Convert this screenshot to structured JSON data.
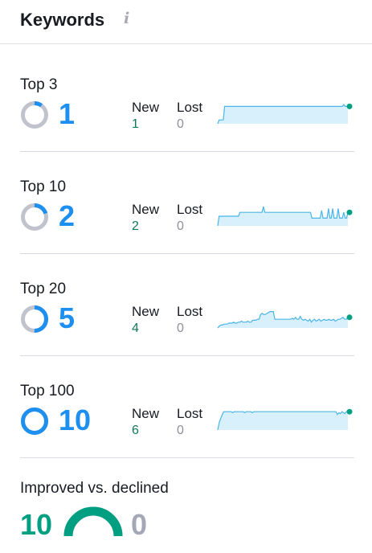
{
  "widget": {
    "title": "Keywords",
    "info_icon": "i"
  },
  "colors": {
    "count_blue": "#1d8ff0",
    "new_green": "#0e7a52",
    "spark_line": "#4ab5e8",
    "spark_fill": "#d8f0fc",
    "dot_green": "#009f81",
    "donut_gray": "#c1c3cc",
    "improved_green": "#009f81",
    "declined_gray": "#a4a7b5"
  },
  "sections": [
    {
      "label": "Top 3",
      "count": "1",
      "share": 0.1,
      "new_label": "New",
      "new_value": "1",
      "lost_label": "Lost",
      "lost_value": "0",
      "trend": [
        0,
        0.2,
        0.2,
        0.2,
        0.2,
        0.9,
        0.9,
        0.9,
        0.9,
        0.9,
        0.9,
        0.9,
        0.9,
        0.9,
        0.9,
        0.9,
        0.9,
        0.9,
        0.9,
        0.9,
        0.9,
        0.9,
        0.9,
        0.9,
        0.9,
        0.9,
        0.9,
        0.9,
        0.9,
        0.9,
        0.9,
        0.9,
        0.9,
        0.9,
        0.9,
        0.9,
        0.9,
        0.9,
        0.9,
        0.9,
        0.9,
        0.9,
        0.9,
        0.9,
        0.9,
        0.9,
        0.9,
        0.9,
        0.9,
        0.9,
        0.9,
        0.9,
        0.9,
        0.9,
        0.9,
        0.9,
        0.9,
        0.9,
        0.9,
        0.9,
        0.9,
        0.9,
        0.9,
        0.9,
        0.9,
        0.9,
        0.9,
        0.9,
        0.9,
        0.9,
        0.9,
        0.9,
        0.9,
        0.9,
        0.9,
        0.9,
        0.9,
        0.9,
        0.9,
        0.9,
        0.9,
        0.9,
        0.9,
        0.9,
        0.9,
        0.9,
        0.9,
        0.9,
        0.9,
        0.9,
        0.9,
        1,
        0.9,
        0.9,
        0.9
      ]
    },
    {
      "label": "Top 10",
      "count": "2",
      "share": 0.2,
      "new_label": "New",
      "new_value": "2",
      "lost_label": "Lost",
      "lost_value": "0",
      "trend": [
        0,
        0.5,
        0.5,
        0.5,
        0.5,
        0.5,
        0.5,
        0.5,
        0.5,
        0.5,
        0.5,
        0.5,
        0.5,
        0.5,
        0.5,
        0.5,
        0.7,
        0.7,
        0.7,
        0.7,
        0.7,
        0.7,
        0.7,
        0.7,
        0.7,
        0.7,
        0.7,
        0.7,
        0.7,
        0.7,
        0.7,
        0.7,
        0.7,
        1,
        0.7,
        0.7,
        0.7,
        0.7,
        0.7,
        0.7,
        0.7,
        0.7,
        0.7,
        0.7,
        0.7,
        0.7,
        0.7,
        0.7,
        0.7,
        0.7,
        0.7,
        0.7,
        0.7,
        0.7,
        0.7,
        0.7,
        0.7,
        0.7,
        0.7,
        0.7,
        0.7,
        0.7,
        0.7,
        0.7,
        0.7,
        0.7,
        0.7,
        0.7,
        0.4,
        0.4,
        0.4,
        0.4,
        0.4,
        0.4,
        0.4,
        0.8,
        0.4,
        0.4,
        0.4,
        0.4,
        0.9,
        0.4,
        0.4,
        0.9,
        0.4,
        0.4,
        0.4,
        0.9,
        0.4,
        0.4,
        0.4,
        0.7,
        0.4,
        0.4,
        0.7
      ]
    },
    {
      "label": "Top 20",
      "count": "5",
      "share": 0.5,
      "new_label": "New",
      "new_value": "4",
      "lost_label": "Lost",
      "lost_value": "0",
      "trend": [
        0,
        0.1,
        0.15,
        0.15,
        0.2,
        0.2,
        0.2,
        0.25,
        0.25,
        0.25,
        0.3,
        0.25,
        0.25,
        0.3,
        0.3,
        0.35,
        0.3,
        0.3,
        0.3,
        0.35,
        0.3,
        0.3,
        0.4,
        0.4,
        0.4,
        0.45,
        0.45,
        0.7,
        0.75,
        0.7,
        0.7,
        0.75,
        0.8,
        0.85,
        0.85,
        0.85,
        0.45,
        0.45,
        0.45,
        0.45,
        0.45,
        0.45,
        0.45,
        0.45,
        0.45,
        0.45,
        0.45,
        0.5,
        0.45,
        0.55,
        0.45,
        0.45,
        0.6,
        0.45,
        0.4,
        0.45,
        0.4,
        0.35,
        0.45,
        0.3,
        0.4,
        0.45,
        0.35,
        0.4,
        0.45,
        0.35,
        0.4,
        0.45,
        0.4,
        0.4,
        0.45,
        0.4,
        0.4,
        0.45,
        0.35,
        0.4,
        0.45,
        0.45,
        0.5,
        0.55,
        0.45,
        0.45,
        0.55
      ]
    },
    {
      "label": "Top 100",
      "count": "10",
      "share": 1,
      "new_label": "New",
      "new_value": "6",
      "lost_label": "Lost",
      "lost_value": "0",
      "trend": [
        0,
        0.4,
        0.6,
        0.8,
        0.95,
        0.95,
        0.95,
        0.95,
        0.95,
        0.95,
        0.9,
        0.95,
        0.95,
        0.95,
        0.95,
        0.95,
        0.95,
        0.95,
        0.9,
        0.95,
        0.95,
        0.95,
        0.95,
        0.9,
        0.95,
        0.95,
        0.95,
        0.95,
        0.95,
        0.95,
        0.95,
        0.95,
        0.95,
        0.95,
        0.95,
        0.95,
        0.95,
        0.95,
        0.95,
        0.95,
        0.95,
        0.95,
        0.95,
        0.95,
        0.95,
        0.95,
        0.95,
        0.95,
        0.95,
        0.95,
        0.95,
        0.95,
        0.95,
        0.95,
        0.95,
        0.95,
        0.95,
        0.95,
        0.95,
        0.95,
        0.95,
        0.95,
        0.95,
        0.95,
        0.95,
        0.95,
        0.95,
        0.95,
        0.95,
        0.95,
        0.95,
        0.95,
        0.95,
        0.95,
        0.95,
        0.95,
        0.95,
        0.95,
        0.95,
        0.95,
        0.8,
        0.9,
        0.85,
        0.95,
        0.9,
        0.85,
        0.95,
        0.95
      ]
    }
  ],
  "improved": {
    "label": "Improved vs. declined",
    "improved_count": "10",
    "declined_count": "0",
    "improved_share": 1
  }
}
